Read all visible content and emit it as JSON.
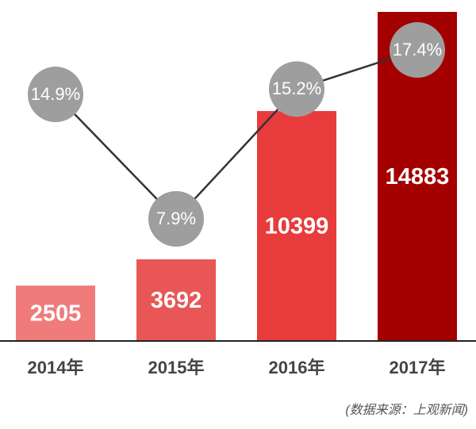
{
  "chart_data": {
    "type": "bar",
    "categories": [
      "2014年",
      "2015年",
      "2016年",
      "2017年"
    ],
    "series": [
      {
        "type": "bar",
        "colors": [
          "#ef7b7b",
          "#e85656",
          "#e83b3b",
          "#a40000"
        ],
        "values": [
          2505,
          3692,
          10399,
          14883
        ]
      },
      {
        "type": "line",
        "axis": "y2",
        "color": "#333333",
        "marker_color": "#9e9e9e",
        "values": [
          14.9,
          7.9,
          15.2,
          17.4
        ],
        "value_labels": [
          "14.9%",
          "7.9%",
          "15.2%",
          "17.4%"
        ]
      }
    ],
    "note": "(数据来源：上观新闻)"
  }
}
